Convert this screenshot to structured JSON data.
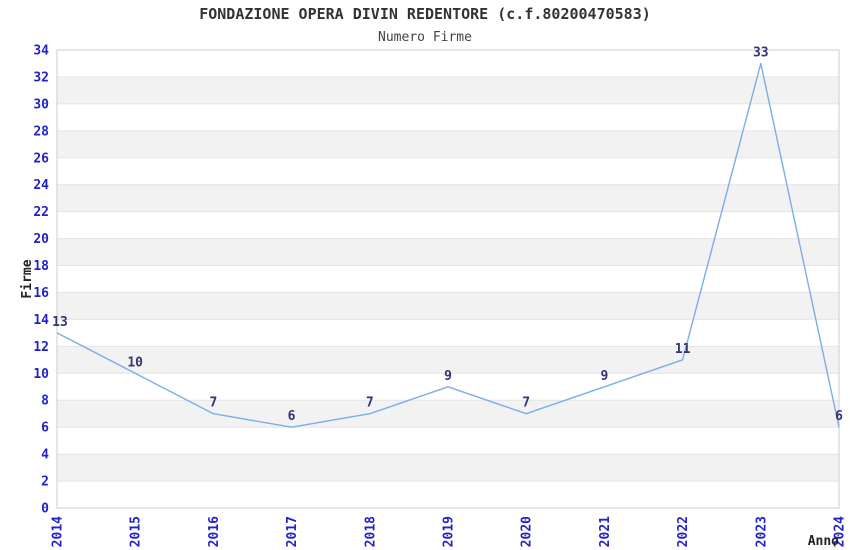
{
  "chart_data": {
    "type": "line",
    "title": "FONDAZIONE OPERA DIVIN REDENTORE (c.f.80200470583)",
    "subtitle": "Numero Firme",
    "xlabel": "Anno",
    "ylabel": "Firme",
    "categories": [
      "2014",
      "2015",
      "2016",
      "2017",
      "2018",
      "2019",
      "2020",
      "2021",
      "2022",
      "2023",
      "2024"
    ],
    "series": [
      {
        "name": "Numero Firme",
        "values": [
          13,
          10,
          7,
          6,
          7,
          9,
          7,
          9,
          11,
          33,
          6
        ]
      }
    ],
    "data_labels": [
      "13",
      "10",
      "7",
      "6",
      "7",
      "9",
      "7",
      "9",
      "11",
      "33",
      "6"
    ],
    "ylim": [
      0,
      34
    ],
    "ytick_step": 2,
    "yticks": [
      0,
      2,
      4,
      6,
      8,
      10,
      12,
      14,
      16,
      18,
      20,
      22,
      24,
      26,
      28,
      30,
      32,
      34
    ],
    "grid": "horizontal-bands-alternating",
    "legend": "none",
    "colors": {
      "line": "#7caee6",
      "tick_label": "#2222cc",
      "data_label": "#333375",
      "band_white": "#ffffff",
      "band_alt": "#f2f2f2",
      "gridline": "#e4e4e4",
      "border": "#cccccc",
      "title": "#333333"
    }
  }
}
